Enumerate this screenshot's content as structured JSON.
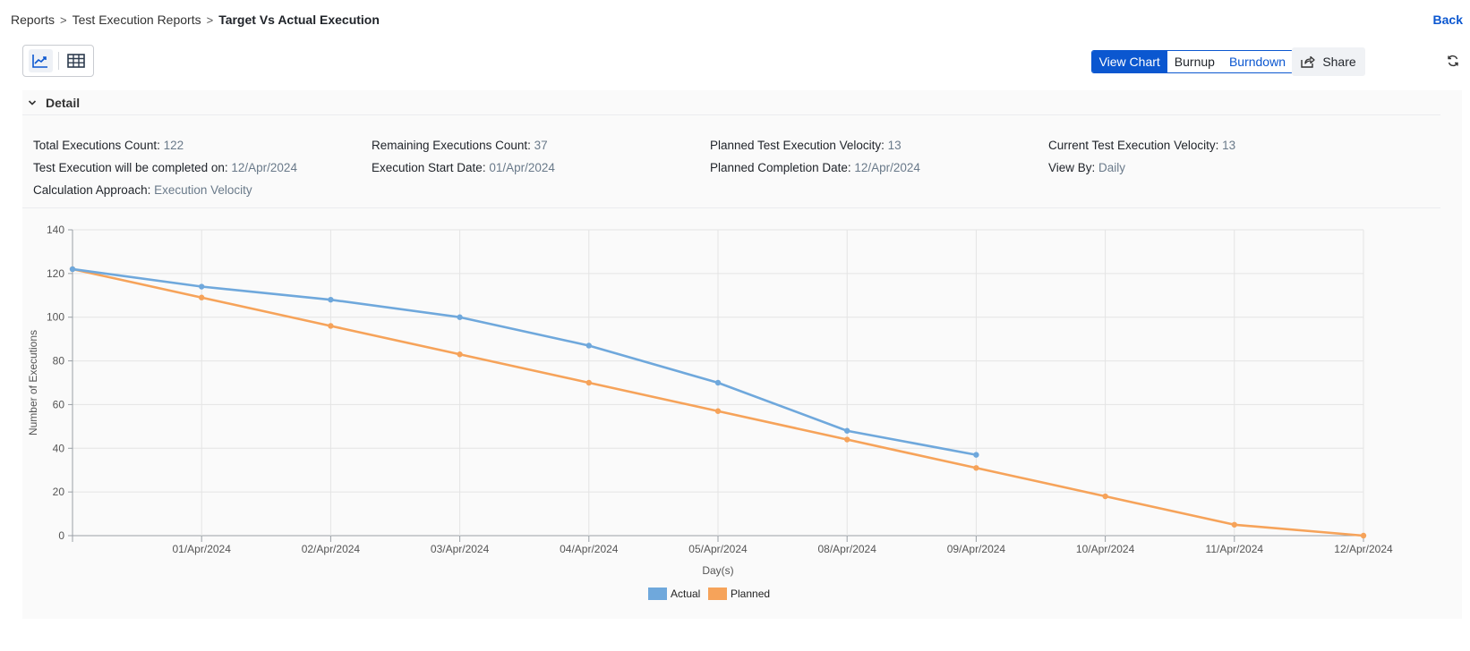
{
  "breadcrumb": {
    "items": [
      "Reports",
      "Test Execution Reports"
    ],
    "current": "Target Vs Actual Execution",
    "separator": ">"
  },
  "back_label": "Back",
  "view_toggle": {
    "chart_icon": "line-chart-icon",
    "table_icon": "table-grid-icon",
    "active": "chart"
  },
  "view_modes": {
    "view_chart": "View Chart",
    "burnup": "Burnup",
    "burndown": "Burndown",
    "active": "View Chart"
  },
  "share_label": "Share",
  "detail": {
    "title": "Detail",
    "total_executions_label": "Total Executions Count:",
    "total_executions_value": "122",
    "remaining_label": "Remaining Executions Count:",
    "remaining_value": "37",
    "planned_velocity_label": "Planned Test Execution Velocity:",
    "planned_velocity_value": "13",
    "current_velocity_label": "Current Test Execution Velocity:",
    "current_velocity_value": "13",
    "completed_on_label": "Test Execution will be completed on:",
    "completed_on_value": "12/Apr/2024",
    "start_date_label": "Execution Start Date:",
    "start_date_value": "01/Apr/2024",
    "planned_completion_label": "Planned Completion Date:",
    "planned_completion_value": "12/Apr/2024",
    "view_by_label": "View By:",
    "view_by_value": "Daily",
    "calc_approach_label": "Calculation Approach:",
    "calc_approach_value": "Execution Velocity"
  },
  "colors": {
    "accent": "#0b57d0",
    "actual": "#6fa8dc",
    "planned": "#f6a35a"
  },
  "chart_data": {
    "type": "line",
    "categories": [
      "",
      "01/Apr/2024",
      "02/Apr/2024",
      "03/Apr/2024",
      "04/Apr/2024",
      "05/Apr/2024",
      "08/Apr/2024",
      "09/Apr/2024",
      "10/Apr/2024",
      "11/Apr/2024",
      "12/Apr/2024"
    ],
    "series": [
      {
        "name": "Actual",
        "color": "#6fa8dc",
        "values": [
          122,
          114,
          108,
          100,
          87,
          70,
          48,
          37,
          null,
          null,
          null
        ]
      },
      {
        "name": "Planned",
        "color": "#f6a35a",
        "values": [
          122,
          109,
          96,
          83,
          70,
          57,
          44,
          31,
          18,
          5,
          0
        ]
      }
    ],
    "xlabel": "Day(s)",
    "ylabel": "Number of Executions",
    "ylim": [
      0,
      140
    ],
    "yticks": [
      0,
      20,
      40,
      60,
      80,
      100,
      120,
      140
    ],
    "grid": true,
    "legend": "bottom-center"
  }
}
